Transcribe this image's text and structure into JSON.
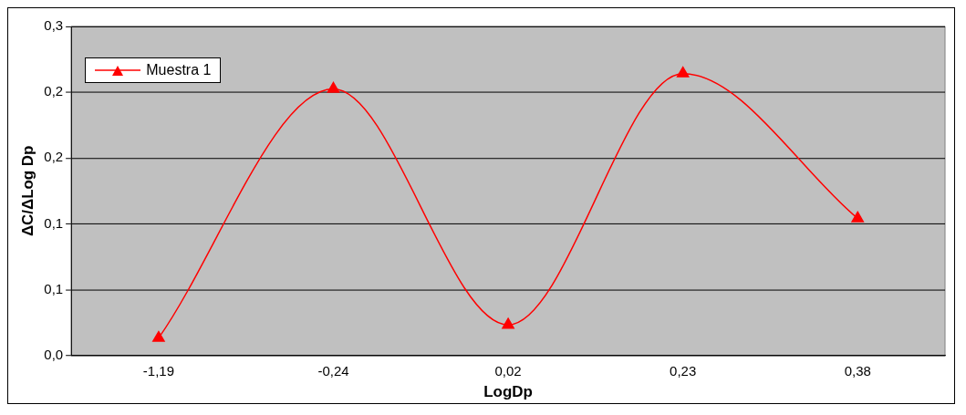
{
  "chart_data": {
    "type": "line",
    "xlabel": "LogDp",
    "ylabel": "ΔC/ΔLog Dp",
    "categories": [
      "-1,19",
      "-0,24",
      "0,02",
      "0,23",
      "0,38"
    ],
    "series": [
      {
        "name": "Muestra 1",
        "color": "#ff0000",
        "values": [
          0.016,
          0.243,
          0.028,
          0.257,
          0.125
        ]
      }
    ],
    "ylim": [
      0,
      0.3
    ],
    "yticks": [
      {
        "value": 0,
        "label": "0,0"
      },
      {
        "value": 0.06,
        "label": "0,1"
      },
      {
        "value": 0.12,
        "label": "0,1"
      },
      {
        "value": 0.18,
        "label": "0,2"
      },
      {
        "value": 0.24,
        "label": "0,2"
      },
      {
        "value": 0.3,
        "label": "0,3"
      }
    ],
    "grid": "y",
    "legend": "top left",
    "marker": "triangle"
  }
}
